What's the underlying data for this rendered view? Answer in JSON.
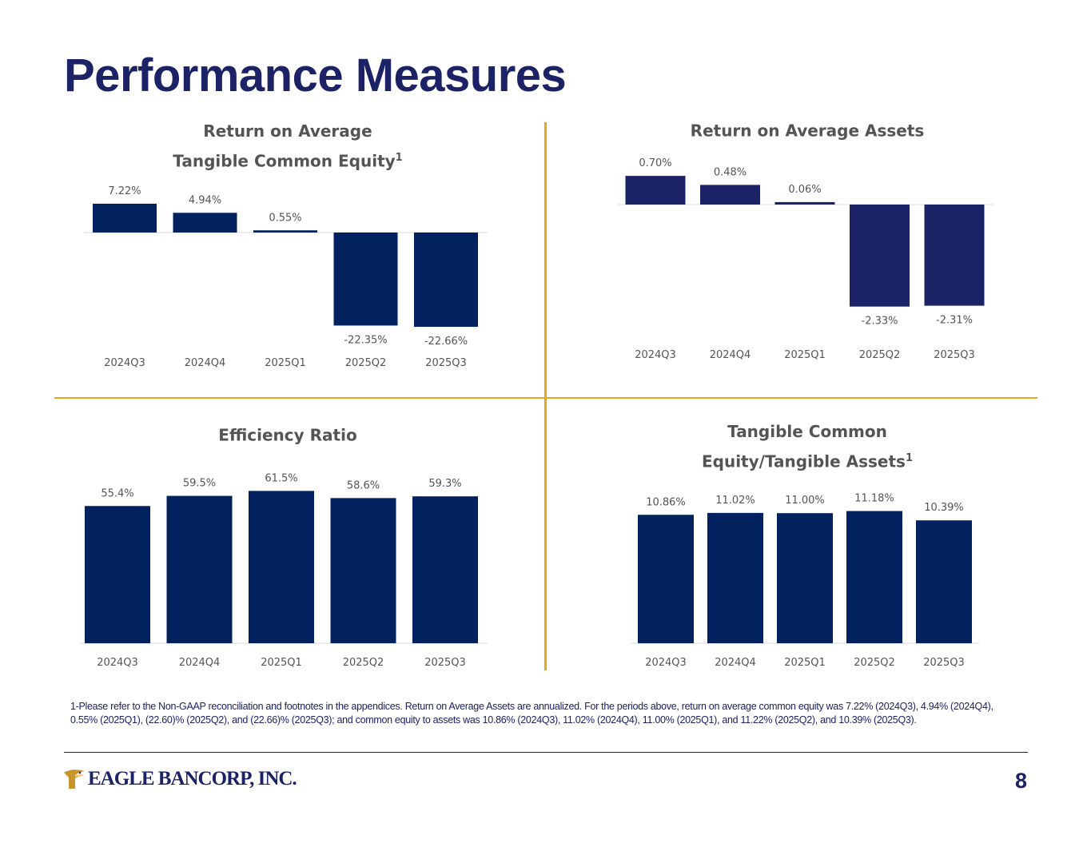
{
  "page": {
    "title": "Performance Measures",
    "page_number": "8",
    "footnote_marker": "1-",
    "footnote": "Please refer to the Non-GAAP reconciliation and footnotes in the appendices. Return on Average Assets are annualized. For the periods above, return on average common equity was 7.22% (2024Q3), 4.94% (2024Q4), 0.55% (2025Q1), (22.60)% (2025Q2), and (22.66)% (2025Q3); and common equity to assets was 10.86% (2024Q3), 11.02% (2024Q4), 11.00% (2025Q1), and 11.22% (2025Q2), and 10.39% (2025Q3).",
    "logo_text": "EAGLE BANCORP, INC."
  },
  "colors": {
    "brand_navy": "#1c2266",
    "bar_navy": "#02225f",
    "bar_navy_alt": "#1c2266",
    "accent_gold": "#e3a91e",
    "text_gray": "#545454"
  },
  "chart_data": [
    {
      "id": "rotce",
      "type": "bar",
      "title": "Return on Average Tangible Common Equity",
      "title_superscript": "1",
      "categories": [
        "2024Q3",
        "2024Q4",
        "2025Q1",
        "2025Q2",
        "2025Q3"
      ],
      "values": [
        7.22,
        4.94,
        0.55,
        -22.35,
        -22.66
      ],
      "labels": [
        "7.22%",
        "4.94%",
        "0.55%",
        "-22.35%",
        "-22.66%"
      ],
      "ylim": [
        -24,
        8
      ],
      "xlabel": "",
      "ylabel": "",
      "grid": false,
      "legend": "none"
    },
    {
      "id": "roaa",
      "type": "bar",
      "title": "Return on Average Assets",
      "title_superscript": "",
      "categories": [
        "2024Q3",
        "2024Q4",
        "2025Q1",
        "2025Q2",
        "2025Q3"
      ],
      "values": [
        0.7,
        0.48,
        0.06,
        -2.33,
        -2.31
      ],
      "labels": [
        "0.70%",
        "0.48%",
        "0.06%",
        "-2.33%",
        "-2.31%"
      ],
      "ylim": [
        -2.5,
        0.8
      ],
      "xlabel": "",
      "ylabel": "",
      "grid": false,
      "legend": "none"
    },
    {
      "id": "efficiency",
      "type": "bar",
      "title": "Efficiency Ratio",
      "title_superscript": "",
      "categories": [
        "2024Q3",
        "2024Q4",
        "2025Q1",
        "2025Q2",
        "2025Q3"
      ],
      "values": [
        55.4,
        59.5,
        61.5,
        58.6,
        59.3
      ],
      "labels": [
        "55.4%",
        "59.5%",
        "61.5%",
        "58.6%",
        "59.3%"
      ],
      "ylim": [
        0,
        70
      ],
      "xlabel": "",
      "ylabel": "",
      "grid": false,
      "legend": "none"
    },
    {
      "id": "tce_ta",
      "type": "bar",
      "title": "Tangible Common Equity/Tangible Assets",
      "title_superscript": "1",
      "categories": [
        "2024Q3",
        "2024Q4",
        "2025Q1",
        "2025Q2",
        "2025Q3"
      ],
      "values": [
        10.86,
        11.02,
        11.0,
        11.18,
        10.39
      ],
      "labels": [
        "10.86%",
        "11.02%",
        "11.00%",
        "11.18%",
        "10.39%"
      ],
      "ylim": [
        0,
        12.5
      ],
      "xlabel": "",
      "ylabel": "",
      "grid": false,
      "legend": "none"
    }
  ]
}
